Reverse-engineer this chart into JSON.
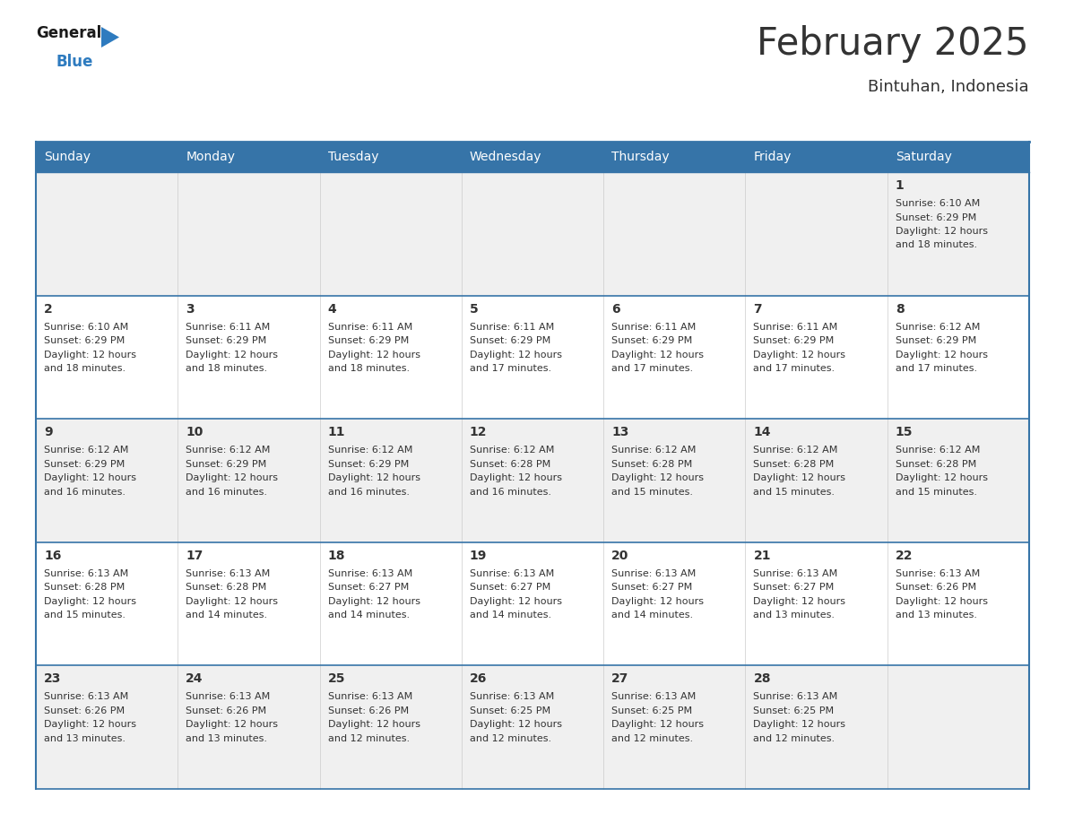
{
  "title": "February 2025",
  "subtitle": "Bintuhan, Indonesia",
  "header_color": "#3674a8",
  "header_text_color": "#ffffff",
  "cell_bg_even": "#f0f0f0",
  "cell_bg_odd": "#ffffff",
  "day_names": [
    "Sunday",
    "Monday",
    "Tuesday",
    "Wednesday",
    "Thursday",
    "Friday",
    "Saturday"
  ],
  "days": [
    {
      "day": 1,
      "col": 6,
      "row": 0,
      "sunrise": "6:10 AM",
      "sunset": "6:29 PM",
      "dl_suffix": "18 minutes."
    },
    {
      "day": 2,
      "col": 0,
      "row": 1,
      "sunrise": "6:10 AM",
      "sunset": "6:29 PM",
      "dl_suffix": "18 minutes."
    },
    {
      "day": 3,
      "col": 1,
      "row": 1,
      "sunrise": "6:11 AM",
      "sunset": "6:29 PM",
      "dl_suffix": "18 minutes."
    },
    {
      "day": 4,
      "col": 2,
      "row": 1,
      "sunrise": "6:11 AM",
      "sunset": "6:29 PM",
      "dl_suffix": "18 minutes."
    },
    {
      "day": 5,
      "col": 3,
      "row": 1,
      "sunrise": "6:11 AM",
      "sunset": "6:29 PM",
      "dl_suffix": "17 minutes."
    },
    {
      "day": 6,
      "col": 4,
      "row": 1,
      "sunrise": "6:11 AM",
      "sunset": "6:29 PM",
      "dl_suffix": "17 minutes."
    },
    {
      "day": 7,
      "col": 5,
      "row": 1,
      "sunrise": "6:11 AM",
      "sunset": "6:29 PM",
      "dl_suffix": "17 minutes."
    },
    {
      "day": 8,
      "col": 6,
      "row": 1,
      "sunrise": "6:12 AM",
      "sunset": "6:29 PM",
      "dl_suffix": "17 minutes."
    },
    {
      "day": 9,
      "col": 0,
      "row": 2,
      "sunrise": "6:12 AM",
      "sunset": "6:29 PM",
      "dl_suffix": "16 minutes."
    },
    {
      "day": 10,
      "col": 1,
      "row": 2,
      "sunrise": "6:12 AM",
      "sunset": "6:29 PM",
      "dl_suffix": "16 minutes."
    },
    {
      "day": 11,
      "col": 2,
      "row": 2,
      "sunrise": "6:12 AM",
      "sunset": "6:29 PM",
      "dl_suffix": "16 minutes."
    },
    {
      "day": 12,
      "col": 3,
      "row": 2,
      "sunrise": "6:12 AM",
      "sunset": "6:28 PM",
      "dl_suffix": "16 minutes."
    },
    {
      "day": 13,
      "col": 4,
      "row": 2,
      "sunrise": "6:12 AM",
      "sunset": "6:28 PM",
      "dl_suffix": "15 minutes."
    },
    {
      "day": 14,
      "col": 5,
      "row": 2,
      "sunrise": "6:12 AM",
      "sunset": "6:28 PM",
      "dl_suffix": "15 minutes."
    },
    {
      "day": 15,
      "col": 6,
      "row": 2,
      "sunrise": "6:12 AM",
      "sunset": "6:28 PM",
      "dl_suffix": "15 minutes."
    },
    {
      "day": 16,
      "col": 0,
      "row": 3,
      "sunrise": "6:13 AM",
      "sunset": "6:28 PM",
      "dl_suffix": "15 minutes."
    },
    {
      "day": 17,
      "col": 1,
      "row": 3,
      "sunrise": "6:13 AM",
      "sunset": "6:28 PM",
      "dl_suffix": "14 minutes."
    },
    {
      "day": 18,
      "col": 2,
      "row": 3,
      "sunrise": "6:13 AM",
      "sunset": "6:27 PM",
      "dl_suffix": "14 minutes."
    },
    {
      "day": 19,
      "col": 3,
      "row": 3,
      "sunrise": "6:13 AM",
      "sunset": "6:27 PM",
      "dl_suffix": "14 minutes."
    },
    {
      "day": 20,
      "col": 4,
      "row": 3,
      "sunrise": "6:13 AM",
      "sunset": "6:27 PM",
      "dl_suffix": "14 minutes."
    },
    {
      "day": 21,
      "col": 5,
      "row": 3,
      "sunrise": "6:13 AM",
      "sunset": "6:27 PM",
      "dl_suffix": "13 minutes."
    },
    {
      "day": 22,
      "col": 6,
      "row": 3,
      "sunrise": "6:13 AM",
      "sunset": "6:26 PM",
      "dl_suffix": "13 minutes."
    },
    {
      "day": 23,
      "col": 0,
      "row": 4,
      "sunrise": "6:13 AM",
      "sunset": "6:26 PM",
      "dl_suffix": "13 minutes."
    },
    {
      "day": 24,
      "col": 1,
      "row": 4,
      "sunrise": "6:13 AM",
      "sunset": "6:26 PM",
      "dl_suffix": "13 minutes."
    },
    {
      "day": 25,
      "col": 2,
      "row": 4,
      "sunrise": "6:13 AM",
      "sunset": "6:26 PM",
      "dl_suffix": "12 minutes."
    },
    {
      "day": 26,
      "col": 3,
      "row": 4,
      "sunrise": "6:13 AM",
      "sunset": "6:25 PM",
      "dl_suffix": "12 minutes."
    },
    {
      "day": 27,
      "col": 4,
      "row": 4,
      "sunrise": "6:13 AM",
      "sunset": "6:25 PM",
      "dl_suffix": "12 minutes."
    },
    {
      "day": 28,
      "col": 5,
      "row": 4,
      "sunrise": "6:13 AM",
      "sunset": "6:25 PM",
      "dl_suffix": "12 minutes."
    }
  ],
  "num_rows": 5,
  "logo_general_color": "#1a1a1a",
  "logo_blue_color": "#2e7bbf",
  "border_color": "#3674a8",
  "row_divider_color": "#3674a8",
  "col_divider_color": "#cccccc",
  "text_color": "#333333",
  "day_num_fontsize": 10,
  "cell_text_fontsize": 8,
  "header_fontsize": 10,
  "title_fontsize": 30,
  "subtitle_fontsize": 13
}
